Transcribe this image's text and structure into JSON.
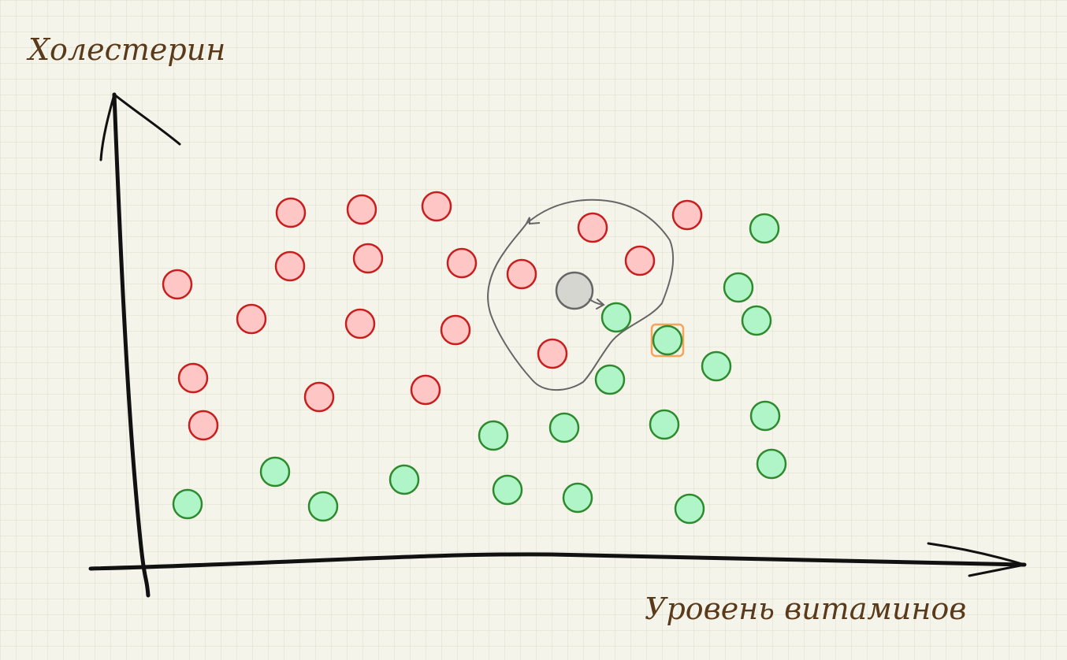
{
  "labels": {
    "y_axis": "Холестерин",
    "x_axis": "Уровень витаминов"
  },
  "colors": {
    "red_fill": "#ffc6c6",
    "red_stroke": "#c81e1e",
    "green_fill": "#aff5c8",
    "green_stroke": "#2f8a2f",
    "unknown_fill": "#d6d6d0",
    "unknown_stroke": "#666666",
    "highlight": "#f6a45a",
    "axis": "#111111",
    "label": "#5a3a1a"
  },
  "points": {
    "red": [
      [
        369,
        270
      ],
      [
        459,
        266
      ],
      [
        554,
        262
      ],
      [
        752,
        289
      ],
      [
        872,
        273
      ],
      [
        368,
        338
      ],
      [
        467,
        328
      ],
      [
        586,
        334
      ],
      [
        662,
        348
      ],
      [
        812,
        331
      ],
      [
        225,
        361
      ],
      [
        319,
        405
      ],
      [
        457,
        411
      ],
      [
        578,
        419
      ],
      [
        701,
        449
      ],
      [
        245,
        480
      ],
      [
        405,
        504
      ],
      [
        540,
        495
      ],
      [
        258,
        540
      ]
    ],
    "green": [
      [
        970,
        290
      ],
      [
        937,
        365
      ],
      [
        960,
        407
      ],
      [
        782,
        403
      ],
      [
        909,
        465
      ],
      [
        774,
        482
      ],
      [
        971,
        528
      ],
      [
        626,
        553
      ],
      [
        716,
        543
      ],
      [
        843,
        539
      ],
      [
        979,
        589
      ],
      [
        349,
        599
      ],
      [
        513,
        609
      ],
      [
        238,
        640
      ],
      [
        410,
        643
      ],
      [
        644,
        622
      ],
      [
        733,
        632
      ],
      [
        875,
        646
      ]
    ],
    "highlighted_green": [
      847,
      432
    ],
    "unknown": [
      729,
      369
    ]
  }
}
